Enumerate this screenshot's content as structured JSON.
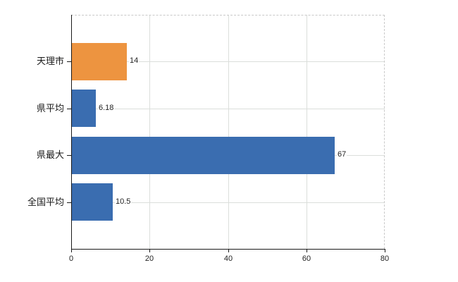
{
  "chart_data": {
    "type": "bar",
    "orientation": "horizontal",
    "title": "",
    "xlabel": "",
    "ylabel": "",
    "categories": [
      "天理市",
      "県平均",
      "県最大",
      "全国平均"
    ],
    "values": [
      14,
      6.18,
      67,
      10.5
    ],
    "value_labels": [
      "14",
      "6.18",
      "67",
      "10.5"
    ],
    "bar_colors": [
      "#ED9440",
      "#3A6DB0",
      "#3A6DB0",
      "#3A6DB0"
    ],
    "xlim": [
      0,
      80
    ],
    "x_ticks": [
      0,
      20,
      40,
      60,
      80
    ],
    "x_tick_labels": [
      "0",
      "20",
      "40",
      "60",
      "80"
    ],
    "grid": true,
    "legend_position": "none"
  },
  "colors": {
    "bar_orange": "#ED9440",
    "bar_blue": "#3A6DB0",
    "gridline": "#DBDEDB",
    "dashed_border": "#C9C9C9",
    "axis": "#1A1A1A",
    "text": "#222222",
    "background": "#FFFFFF"
  }
}
